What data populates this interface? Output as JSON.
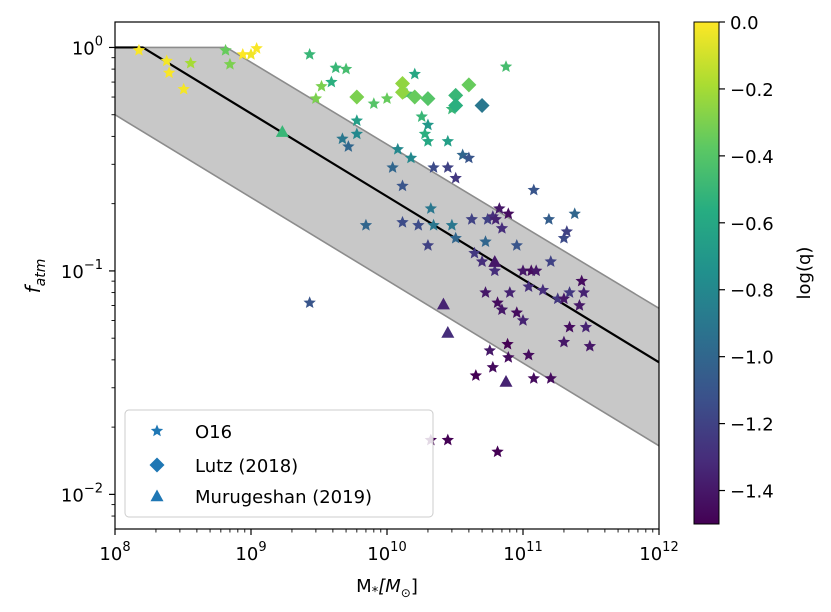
{
  "chart_data": {
    "type": "scatter",
    "x_scale": "log",
    "y_scale": "log",
    "xlim": [
      100000000.0,
      1000000000000.0
    ],
    "ylim": [
      0.007,
      1.3
    ],
    "xlabel_main": "M",
    "xlabel_sub": "*",
    "xlabel_unit": "[M",
    "xlabel_unit_sub": "⊙",
    "xlabel_unit_close": "]",
    "ylabel_main": "f",
    "ylabel_sub": "atm",
    "x_ticks": [
      {
        "value": 100000000.0,
        "base": "10",
        "exp": "8"
      },
      {
        "value": 1000000000.0,
        "base": "10",
        "exp": "9"
      },
      {
        "value": 10000000000.0,
        "base": "10",
        "exp": "10"
      },
      {
        "value": 100000000000.0,
        "base": "10",
        "exp": "11"
      },
      {
        "value": 1000000000000.0,
        "base": "10",
        "exp": "12"
      }
    ],
    "y_ticks": [
      {
        "value": 0.01,
        "base": "10",
        "exp": "−2"
      },
      {
        "value": 0.1,
        "base": "10",
        "exp": "−1"
      },
      {
        "value": 1.0,
        "label": "10",
        "exp": "0",
        "text": "10⁰"
      }
    ],
    "band": {
      "upper": [
        [
          100000000.0,
          1.0
        ],
        [
          660000000.0,
          1.0
        ],
        [
          1000000000000.0,
          0.068
        ]
      ],
      "lower": [
        [
          100000000.0,
          0.5
        ],
        [
          1000000000000.0,
          0.0165
        ]
      ]
    },
    "model_line": [
      [
        100000000.0,
        1.0
      ],
      [
        160000000.0,
        1.0
      ],
      [
        1000000000000.0,
        0.039
      ]
    ],
    "colorbar": {
      "label": "log(q)",
      "range": [
        -1.5,
        0.0
      ],
      "ticks": [
        {
          "value": 0.0,
          "label": "0.0"
        },
        {
          "value": -0.2,
          "label": "−0.2"
        },
        {
          "value": -0.4,
          "label": "−0.4"
        },
        {
          "value": -0.6,
          "label": "−0.6"
        },
        {
          "value": -0.8,
          "label": "−0.8"
        },
        {
          "value": -1.0,
          "label": "−1.0"
        },
        {
          "value": -1.2,
          "label": "−1.2"
        },
        {
          "value": -1.4,
          "label": "−1.4"
        }
      ]
    },
    "legend": {
      "placement": "lower-left",
      "entries": [
        {
          "marker": "star",
          "label": "O16"
        },
        {
          "marker": "diamond",
          "label": "Lutz (2018)"
        },
        {
          "marker": "triangle",
          "label": "Murugeshan (2019)"
        }
      ]
    },
    "series": [
      {
        "name": "O16",
        "marker": "star",
        "points": [
          [
            150000000.0,
            0.97,
            -0.01
          ],
          [
            240000000.0,
            0.87,
            -0.02
          ],
          [
            250000000.0,
            0.77,
            -0.01
          ],
          [
            320000000.0,
            0.65,
            -0.02
          ],
          [
            360000000.0,
            0.85,
            -0.2
          ],
          [
            650000000.0,
            0.97,
            -0.35
          ],
          [
            700000000.0,
            0.84,
            -0.3
          ],
          [
            870000000.0,
            0.93,
            0.0
          ],
          [
            1000000000.0,
            0.93,
            -0.03
          ],
          [
            1100000000.0,
            0.99,
            -0.01
          ],
          [
            2700000000.0,
            0.93,
            -0.5
          ],
          [
            3000000000.0,
            0.59,
            -0.3
          ],
          [
            3300000000.0,
            0.67,
            -0.3
          ],
          [
            4200000000.0,
            0.81,
            -0.5
          ],
          [
            5000000000.0,
            0.8,
            -0.45
          ],
          [
            3900000000.0,
            0.7,
            -0.55
          ],
          [
            6000000000.0,
            0.47,
            -0.65
          ],
          [
            6000000000.0,
            0.41,
            -0.8
          ],
          [
            8000000000.0,
            0.56,
            -0.4
          ],
          [
            10000000000.0,
            0.59,
            -0.35
          ],
          [
            14000000000.0,
            0.62,
            -0.45
          ],
          [
            16000000000.0,
            0.76,
            -0.6
          ],
          [
            18000000000.0,
            0.49,
            -0.5
          ],
          [
            19000000000.0,
            0.41,
            -0.55
          ],
          [
            20000000000.0,
            0.45,
            -0.7
          ],
          [
            20000000000.0,
            0.38,
            -0.6
          ],
          [
            28000000000.0,
            0.38,
            -0.65
          ],
          [
            30000000000.0,
            0.53,
            -0.5
          ],
          [
            75000000000.0,
            0.82,
            -0.45
          ],
          [
            4700000000.0,
            0.39,
            -0.9
          ],
          [
            5200000000.0,
            0.36,
            -1.0
          ],
          [
            12000000000.0,
            0.35,
            -0.8
          ],
          [
            15000000000.0,
            0.32,
            -0.8
          ],
          [
            11000000000.0,
            0.29,
            -1.0
          ],
          [
            13000000000.0,
            0.24,
            -1.1
          ],
          [
            22000000000.0,
            0.29,
            -1.15
          ],
          [
            28000000000.0,
            0.29,
            -1.2
          ],
          [
            32000000000.0,
            0.26,
            -1.25
          ],
          [
            36000000000.0,
            0.33,
            -1.0
          ],
          [
            40000000000.0,
            0.32,
            -1.1
          ],
          [
            21000000000.0,
            0.19,
            -0.9
          ],
          [
            7000000000.0,
            0.16,
            -1.0
          ],
          [
            13000000000.0,
            0.165,
            -1.15
          ],
          [
            17000000000.0,
            0.16,
            -1.15
          ],
          [
            22000000000.0,
            0.16,
            -0.9
          ],
          [
            30000000000.0,
            0.16,
            -0.9
          ],
          [
            42000000000.0,
            0.17,
            -1.2
          ],
          [
            55000000000.0,
            0.17,
            -1.2
          ],
          [
            60000000000.0,
            0.175,
            -1.3
          ],
          [
            63000000000.0,
            0.17,
            -1.35
          ],
          [
            67000000000.0,
            0.19,
            -1.4
          ],
          [
            70000000000.0,
            0.155,
            -1.3
          ],
          [
            78000000000.0,
            0.18,
            -1.45
          ],
          [
            120000000000.0,
            0.23,
            -1.1
          ],
          [
            155000000000.0,
            0.17,
            -1.05
          ],
          [
            240000000000.0,
            0.18,
            -1.0
          ],
          [
            200000000000.0,
            0.14,
            -1.15
          ],
          [
            210000000000.0,
            0.15,
            -1.2
          ],
          [
            32000000000.0,
            0.14,
            -1.0
          ],
          [
            53000000000.0,
            0.135,
            -1.0
          ],
          [
            20000000000.0,
            0.13,
            -1.2
          ],
          [
            44000000000.0,
            0.12,
            -1.25
          ],
          [
            50000000000.0,
            0.11,
            -1.3
          ],
          [
            62000000000.0,
            0.1,
            -1.3
          ],
          [
            90000000000.0,
            0.13,
            -1.1
          ],
          [
            100000000000.0,
            0.1,
            -1.4
          ],
          [
            115000000000.0,
            0.1,
            -1.45
          ],
          [
            125000000000.0,
            0.1,
            -1.4
          ],
          [
            160000000000.0,
            0.11,
            -1.2
          ],
          [
            270000000000.0,
            0.09,
            -1.45
          ],
          [
            280000000000.0,
            0.08,
            -1.35
          ],
          [
            220000000000.0,
            0.08,
            -1.25
          ],
          [
            140000000000.0,
            0.082,
            -1.3
          ],
          [
            110000000000.0,
            0.085,
            -1.3
          ],
          [
            80000000000.0,
            0.08,
            -1.35
          ],
          [
            53000000000.0,
            0.08,
            -1.4
          ],
          [
            65000000000.0,
            0.072,
            -1.45
          ],
          [
            90000000000.0,
            0.065,
            -1.45
          ],
          [
            70000000000.0,
            0.067,
            -1.4
          ],
          [
            180000000000.0,
            0.075,
            -1.25
          ],
          [
            200000000000.0,
            0.075,
            -1.4
          ],
          [
            260000000000.0,
            0.07,
            -1.4
          ],
          [
            100000000000.0,
            0.06,
            -1.35
          ],
          [
            220000000000.0,
            0.056,
            -1.45
          ],
          [
            290000000000.0,
            0.056,
            -1.35
          ],
          [
            200000000000.0,
            0.048,
            -1.4
          ],
          [
            310000000000.0,
            0.046,
            -1.4
          ],
          [
            77000000000.0,
            0.047,
            -1.5
          ],
          [
            57000000000.0,
            0.044,
            -1.4
          ],
          [
            78000000000.0,
            0.041,
            -1.45
          ],
          [
            110000000000.0,
            0.042,
            -1.45
          ],
          [
            60000000000.0,
            0.037,
            -1.45
          ],
          [
            45000000000.0,
            0.034,
            -1.5
          ],
          [
            120000000000.0,
            0.033,
            -1.45
          ],
          [
            160000000000.0,
            0.033,
            -1.45
          ],
          [
            2700000000.0,
            0.072,
            -1.1
          ],
          [
            28000000000.0,
            0.0175,
            -1.5
          ],
          [
            65000000000.0,
            0.0155,
            -1.5
          ],
          [
            21000000000.0,
            0.0175,
            -1.55
          ]
        ]
      },
      {
        "name": "Lutz (2018)",
        "marker": "diamond",
        "points": [
          [
            6000000000.0,
            0.6,
            -0.3
          ],
          [
            13000000000.0,
            0.69,
            -0.25
          ],
          [
            13000000000.0,
            0.63,
            -0.25
          ],
          [
            16000000000.0,
            0.6,
            -0.35
          ],
          [
            20000000000.0,
            0.59,
            -0.4
          ],
          [
            32000000000.0,
            0.61,
            -0.5
          ],
          [
            32000000000.0,
            0.55,
            -0.55
          ],
          [
            40000000000.0,
            0.68,
            -0.35
          ],
          [
            50000000000.0,
            0.55,
            -0.9
          ]
        ]
      },
      {
        "name": "Murugeshan (2019)",
        "marker": "triangle",
        "points": [
          [
            1700000000.0,
            0.42,
            -0.5
          ],
          [
            26000000000.0,
            0.071,
            -1.35
          ],
          [
            28000000000.0,
            0.053,
            -1.3
          ],
          [
            62000000000.0,
            0.11,
            -1.4
          ],
          [
            75000000000.0,
            0.032,
            -1.35
          ]
        ]
      }
    ]
  }
}
